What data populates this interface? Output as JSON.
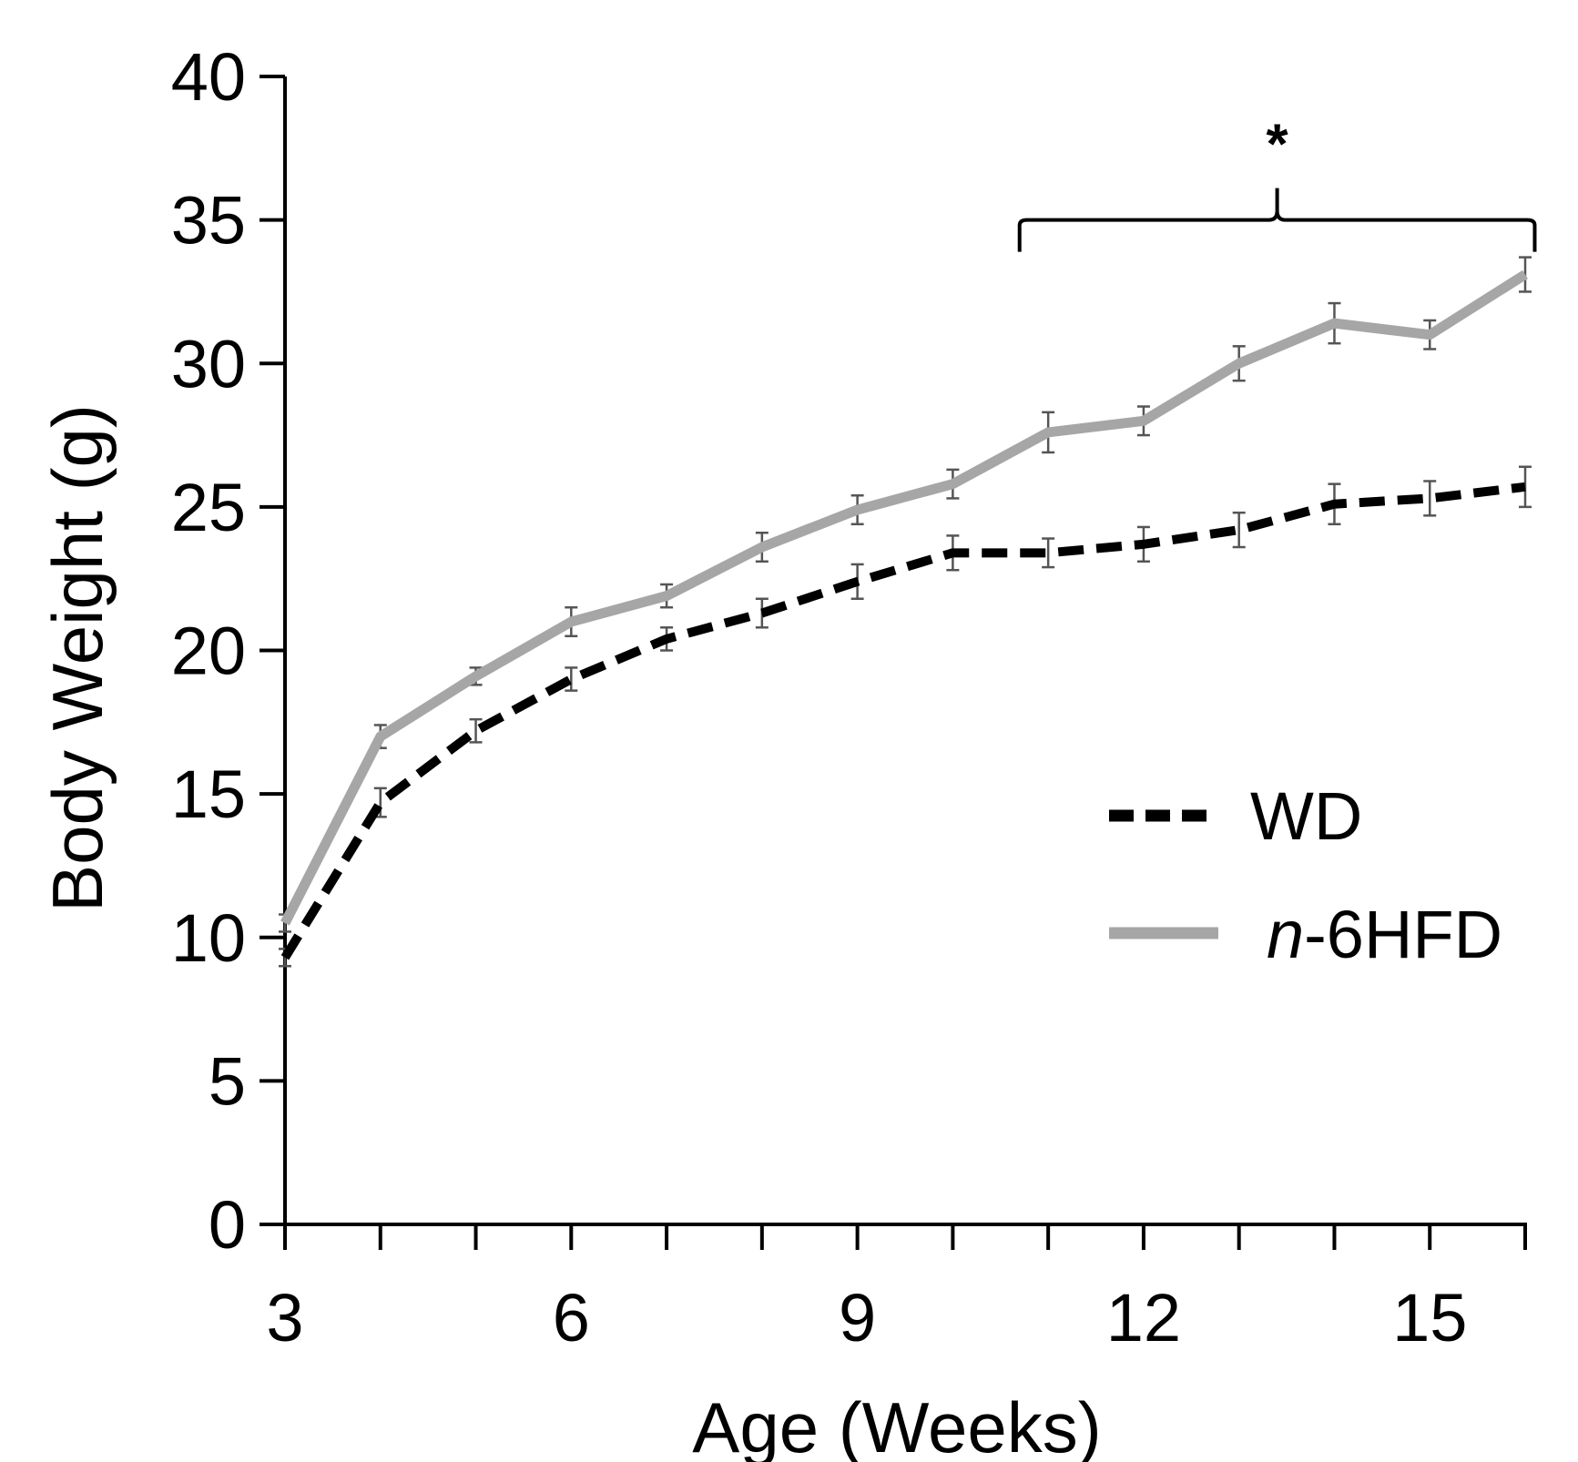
{
  "chart_data": {
    "type": "line",
    "title": "",
    "xlabel": "Age (Weeks)",
    "ylabel": "Body Weight (g)",
    "xlim": [
      3,
      16
    ],
    "ylim": [
      0,
      40
    ],
    "x": [
      3,
      4,
      5,
      6,
      7,
      8,
      9,
      10,
      11,
      12,
      13,
      14,
      15,
      16
    ],
    "x_ticks": [
      3,
      6,
      9,
      12,
      15
    ],
    "y_ticks": [
      0,
      5,
      10,
      15,
      20,
      25,
      30,
      35,
      40
    ],
    "series": [
      {
        "name": "WD",
        "color": "#000000",
        "style": "dashed",
        "values": [
          9.3,
          14.7,
          17.2,
          19.0,
          20.4,
          21.3,
          22.4,
          23.4,
          23.4,
          23.7,
          24.2,
          25.1,
          25.3,
          25.7
        ],
        "errors": [
          0.3,
          0.5,
          0.4,
          0.4,
          0.4,
          0.5,
          0.6,
          0.6,
          0.5,
          0.6,
          0.6,
          0.7,
          0.6,
          0.7
        ]
      },
      {
        "name": "n-6HFD",
        "legend_italic": "n",
        "legend_rest": "-6HFD",
        "color": "#a6a6a6",
        "style": "solid",
        "values": [
          10.5,
          17.0,
          19.1,
          21.0,
          21.9,
          23.6,
          24.9,
          25.8,
          27.6,
          28.0,
          30.0,
          31.4,
          31.0,
          33.1
        ],
        "errors": [
          0.3,
          0.4,
          0.3,
          0.5,
          0.4,
          0.5,
          0.5,
          0.5,
          0.7,
          0.5,
          0.6,
          0.7,
          0.5,
          0.6
        ]
      }
    ],
    "annotations": [
      {
        "text": "*",
        "type": "bracket",
        "x_from": 10.7,
        "x_to": 16.1,
        "y": 35
      }
    ],
    "legend_position": "right"
  }
}
